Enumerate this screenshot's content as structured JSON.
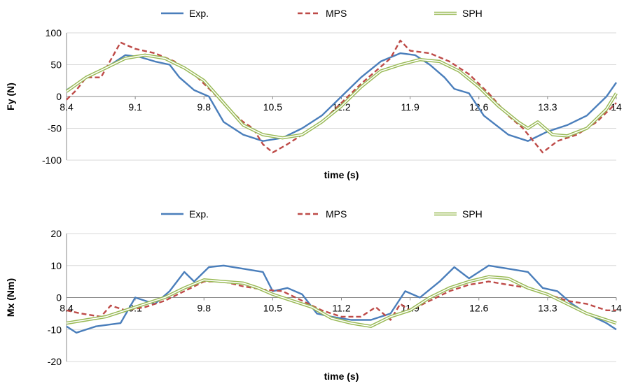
{
  "chart_data": [
    {
      "type": "line",
      "xlabel": "time (s)",
      "ylabel": "Fy (N)",
      "xlim": [
        8.4,
        14
      ],
      "ylim": [
        -100,
        100
      ],
      "x_ticks": [
        "8.4",
        "9.1",
        "9.8",
        "10.5",
        "11.2",
        "11.9",
        "12.6",
        "13.3",
        "14"
      ],
      "y_ticks": [
        "100",
        "50",
        "0",
        "-50",
        "-100"
      ],
      "grid": "horizontal major",
      "legend_position": "top",
      "series": [
        {
          "name": "Exp.",
          "color": "#4a7ebb",
          "style": "solid",
          "points": [
            [
              8.4,
              10
            ],
            [
              8.6,
              30
            ],
            [
              8.8,
              45
            ],
            [
              9.0,
              65
            ],
            [
              9.15,
              62
            ],
            [
              9.3,
              55
            ],
            [
              9.45,
              50
            ],
            [
              9.55,
              30
            ],
            [
              9.7,
              10
            ],
            [
              9.85,
              0
            ],
            [
              10.0,
              -40
            ],
            [
              10.2,
              -60
            ],
            [
              10.4,
              -70
            ],
            [
              10.6,
              -65
            ],
            [
              10.8,
              -50
            ],
            [
              11.0,
              -30
            ],
            [
              11.2,
              0
            ],
            [
              11.4,
              30
            ],
            [
              11.6,
              55
            ],
            [
              11.8,
              68
            ],
            [
              11.95,
              65
            ],
            [
              12.1,
              50
            ],
            [
              12.25,
              30
            ],
            [
              12.35,
              12
            ],
            [
              12.5,
              5
            ],
            [
              12.65,
              -30
            ],
            [
              12.9,
              -60
            ],
            [
              13.1,
              -70
            ],
            [
              13.3,
              -55
            ],
            [
              13.5,
              -45
            ],
            [
              13.7,
              -30
            ],
            [
              13.9,
              0
            ],
            [
              14.0,
              22
            ]
          ]
        },
        {
          "name": "MPS",
          "color": "#be4b48",
          "style": "dashed",
          "points": [
            [
              8.4,
              -5
            ],
            [
              8.5,
              10
            ],
            [
              8.6,
              30
            ],
            [
              8.75,
              30
            ],
            [
              8.95,
              85
            ],
            [
              9.1,
              75
            ],
            [
              9.3,
              68
            ],
            [
              9.5,
              55
            ],
            [
              9.7,
              35
            ],
            [
              9.9,
              5
            ],
            [
              10.05,
              -20
            ],
            [
              10.2,
              -40
            ],
            [
              10.3,
              -50
            ],
            [
              10.4,
              -75
            ],
            [
              10.5,
              -88
            ],
            [
              10.65,
              -75
            ],
            [
              10.8,
              -60
            ],
            [
              11.0,
              -40
            ],
            [
              11.2,
              -10
            ],
            [
              11.4,
              20
            ],
            [
              11.55,
              40
            ],
            [
              11.7,
              60
            ],
            [
              11.8,
              88
            ],
            [
              11.9,
              72
            ],
            [
              12.1,
              68
            ],
            [
              12.3,
              55
            ],
            [
              12.5,
              35
            ],
            [
              12.7,
              5
            ],
            [
              12.9,
              -30
            ],
            [
              13.05,
              -50
            ],
            [
              13.25,
              -88
            ],
            [
              13.4,
              -70
            ],
            [
              13.6,
              -60
            ],
            [
              13.8,
              -40
            ],
            [
              14.0,
              -10
            ]
          ]
        },
        {
          "name": "SPH",
          "color": "#98b954",
          "style": "double",
          "points": [
            [
              8.4,
              8
            ],
            [
              8.6,
              30
            ],
            [
              8.8,
              45
            ],
            [
              9.0,
              60
            ],
            [
              9.2,
              65
            ],
            [
              9.4,
              60
            ],
            [
              9.6,
              45
            ],
            [
              9.8,
              25
            ],
            [
              10.0,
              -10
            ],
            [
              10.2,
              -45
            ],
            [
              10.4,
              -60
            ],
            [
              10.6,
              -65
            ],
            [
              10.8,
              -60
            ],
            [
              11.0,
              -40
            ],
            [
              11.2,
              -15
            ],
            [
              11.4,
              15
            ],
            [
              11.6,
              40
            ],
            [
              11.8,
              50
            ],
            [
              12.0,
              58
            ],
            [
              12.2,
              55
            ],
            [
              12.4,
              40
            ],
            [
              12.6,
              15
            ],
            [
              12.8,
              -15
            ],
            [
              13.0,
              -40
            ],
            [
              13.1,
              -50
            ],
            [
              13.2,
              -40
            ],
            [
              13.35,
              -60
            ],
            [
              13.5,
              -62
            ],
            [
              13.7,
              -50
            ],
            [
              13.9,
              -20
            ],
            [
              14.0,
              5
            ]
          ]
        }
      ]
    },
    {
      "type": "line",
      "xlabel": "time (s)",
      "ylabel": "Mx (Nm)",
      "xlim": [
        8.4,
        14
      ],
      "ylim": [
        -20,
        20
      ],
      "x_ticks": [
        "8.4",
        "9.1",
        "9.8",
        "10.5",
        "11.2",
        "11.9",
        "12.6",
        "13.3",
        "14"
      ],
      "y_ticks": [
        "20",
        "10",
        "0",
        "-10",
        "-20"
      ],
      "grid": "horizontal major",
      "legend_position": "top",
      "series": [
        {
          "name": "Exp.",
          "color": "#4a7ebb",
          "style": "solid",
          "points": [
            [
              8.4,
              -9
            ],
            [
              8.5,
              -11
            ],
            [
              8.7,
              -9
            ],
            [
              8.95,
              -8
            ],
            [
              9.1,
              0
            ],
            [
              9.3,
              -2
            ],
            [
              9.45,
              2
            ],
            [
              9.6,
              8
            ],
            [
              9.7,
              5
            ],
            [
              9.85,
              9.5
            ],
            [
              10.0,
              10
            ],
            [
              10.2,
              9
            ],
            [
              10.4,
              8
            ],
            [
              10.5,
              2
            ],
            [
              10.65,
              3
            ],
            [
              10.8,
              1
            ],
            [
              10.95,
              -5
            ],
            [
              11.1,
              -6
            ],
            [
              11.3,
              -7
            ],
            [
              11.5,
              -7
            ],
            [
              11.7,
              -5
            ],
            [
              11.85,
              2
            ],
            [
              12.0,
              0
            ],
            [
              12.2,
              5
            ],
            [
              12.35,
              9.5
            ],
            [
              12.5,
              6
            ],
            [
              12.7,
              10
            ],
            [
              12.9,
              9
            ],
            [
              13.1,
              8
            ],
            [
              13.25,
              3
            ],
            [
              13.4,
              2
            ],
            [
              13.55,
              -2
            ],
            [
              13.7,
              -5
            ],
            [
              13.9,
              -8
            ],
            [
              14.0,
              -10
            ]
          ]
        },
        {
          "name": "MPS",
          "color": "#be4b48",
          "style": "dashed",
          "points": [
            [
              8.4,
              -4
            ],
            [
              8.55,
              -5
            ],
            [
              8.75,
              -6
            ],
            [
              8.85,
              -2.5
            ],
            [
              9.0,
              -4
            ],
            [
              9.2,
              -3
            ],
            [
              9.4,
              -1
            ],
            [
              9.6,
              2
            ],
            [
              9.8,
              5
            ],
            [
              10.0,
              5
            ],
            [
              10.2,
              3.5
            ],
            [
              10.4,
              2.5
            ],
            [
              10.6,
              2
            ],
            [
              10.8,
              -1
            ],
            [
              11.0,
              -4
            ],
            [
              11.2,
              -6
            ],
            [
              11.4,
              -6
            ],
            [
              11.55,
              -3
            ],
            [
              11.7,
              -7
            ],
            [
              11.8,
              -2
            ],
            [
              11.9,
              -4
            ],
            [
              12.1,
              -1
            ],
            [
              12.3,
              2
            ],
            [
              12.5,
              4
            ],
            [
              12.7,
              5
            ],
            [
              12.9,
              4
            ],
            [
              13.1,
              3
            ],
            [
              13.3,
              1
            ],
            [
              13.5,
              -1
            ],
            [
              13.7,
              -2
            ],
            [
              13.9,
              -4
            ],
            [
              14.0,
              -4
            ]
          ]
        },
        {
          "name": "SPH",
          "color": "#98b954",
          "style": "double",
          "points": [
            [
              8.4,
              -8
            ],
            [
              8.6,
              -7
            ],
            [
              8.8,
              -6
            ],
            [
              9.0,
              -4
            ],
            [
              9.2,
              -2
            ],
            [
              9.4,
              0
            ],
            [
              9.6,
              3
            ],
            [
              9.8,
              5.5
            ],
            [
              10.0,
              5
            ],
            [
              10.2,
              4.5
            ],
            [
              10.35,
              3
            ],
            [
              10.5,
              1
            ],
            [
              10.7,
              -1
            ],
            [
              10.9,
              -3
            ],
            [
              11.1,
              -6.5
            ],
            [
              11.3,
              -8
            ],
            [
              11.5,
              -9
            ],
            [
              11.7,
              -6
            ],
            [
              11.9,
              -4
            ],
            [
              12.1,
              0
            ],
            [
              12.3,
              3
            ],
            [
              12.5,
              5
            ],
            [
              12.7,
              6.5
            ],
            [
              12.9,
              6
            ],
            [
              13.1,
              3
            ],
            [
              13.3,
              1
            ],
            [
              13.5,
              -2
            ],
            [
              13.7,
              -5
            ],
            [
              13.9,
              -7
            ],
            [
              14.0,
              -8
            ]
          ]
        }
      ]
    }
  ]
}
